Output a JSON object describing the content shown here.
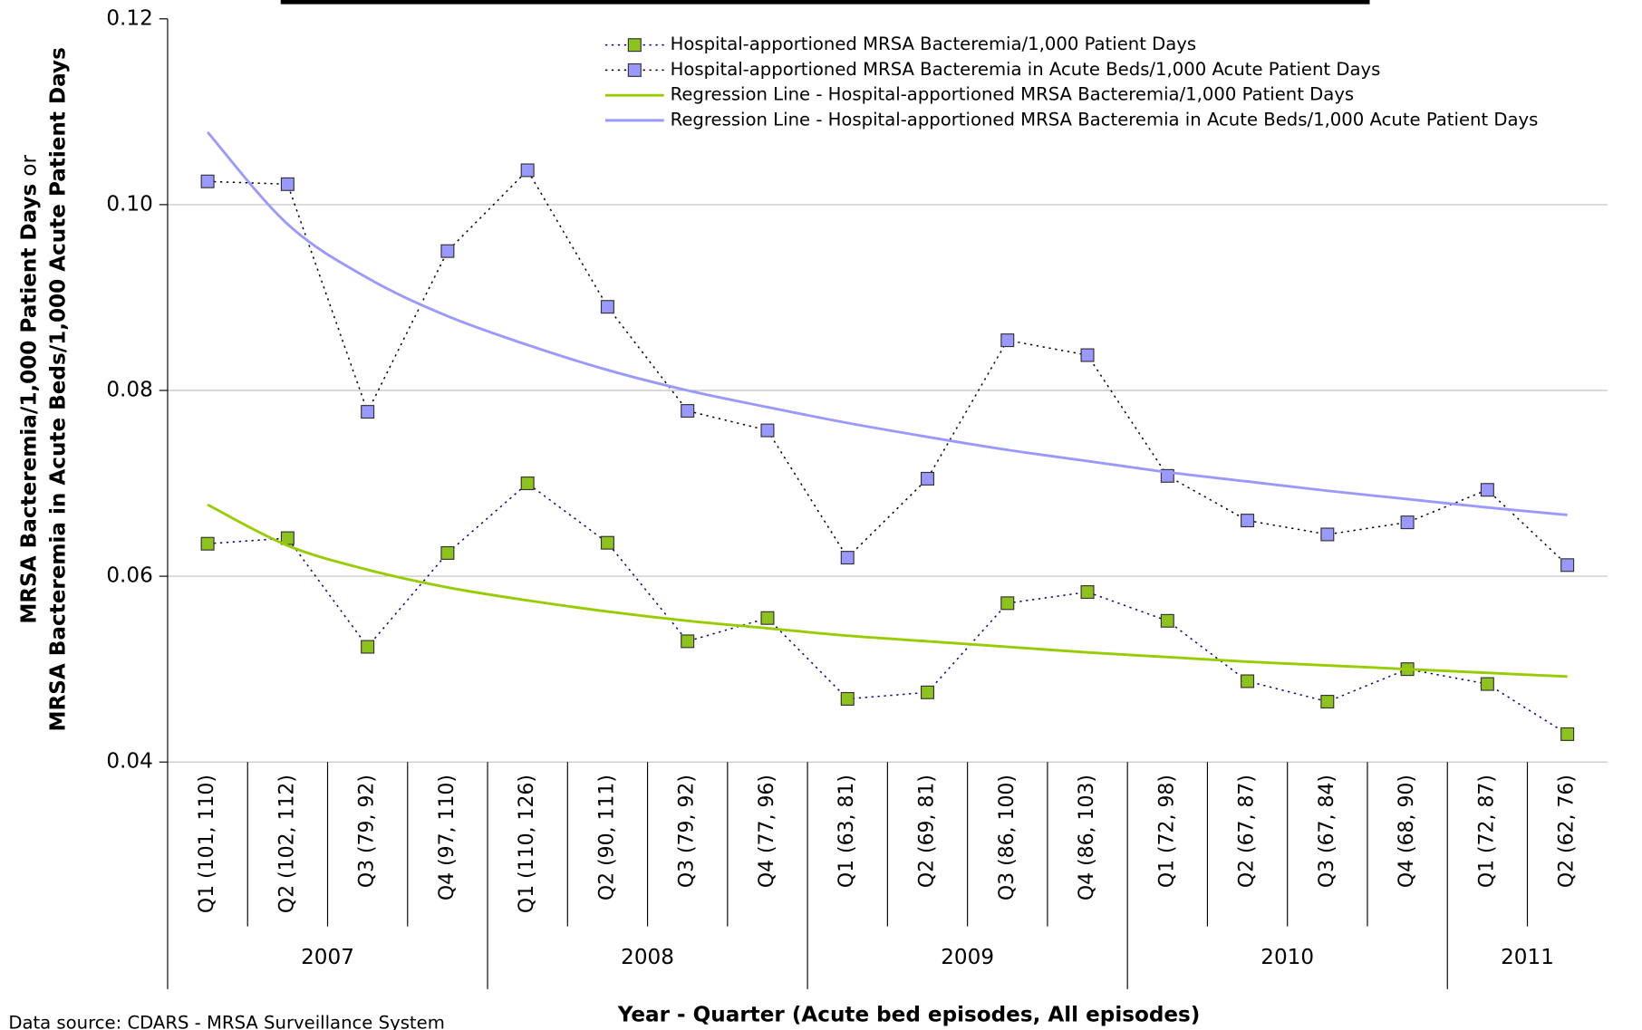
{
  "chart_data": {
    "type": "line",
    "y_label": [
      "MRSA Bacteremia/1,000 Patient Days",
      "or",
      "MRSA Bacteremia in Acute Beds/1,000 Acute Patient Days"
    ],
    "x_label": "Year - Quarter (Acute bed episodes, All episodes)",
    "source": "Data source: CDARS - MRSA Surveillance System",
    "categories": [
      "Q1 (101, 110)",
      "Q2 (102, 112)",
      "Q3 (79, 92)",
      "Q4 (97, 110)",
      "Q1 (110, 126)",
      "Q2 (90, 111)",
      "Q3 (79, 92)",
      "Q4 (77, 96)",
      "Q1 (63, 81)",
      "Q2 (69, 81)",
      "Q3 (86, 100)",
      "Q4 (86, 103)",
      "Q1 (72, 98)",
      "Q2 (67, 87)",
      "Q3 (67, 84)",
      "Q4 (68, 90)",
      "Q1 (72, 87)",
      "Q2 (62, 76)"
    ],
    "years": [
      "2007",
      "2008",
      "2009",
      "2010",
      "2011"
    ],
    "series": [
      {
        "name": "Hospital-apportioned MRSA Bacteremia/1,000 Patient Days",
        "color": "#8dc21f",
        "line_color": "#000080",
        "style": "markers",
        "values": [
          0.0635,
          0.0641,
          0.0524,
          0.0625,
          0.07,
          0.0636,
          0.053,
          0.0555,
          0.0468,
          0.0475,
          0.0571,
          0.0583,
          0.0552,
          0.0487,
          0.0465,
          0.05,
          0.0484,
          0.043
        ]
      },
      {
        "name": "Hospital-apportioned MRSA Bacteremia in Acute Beds/1,000 Acute Patient Days",
        "color": "#9999ff",
        "line_color": "#000000",
        "style": "markers",
        "values": [
          0.1025,
          0.1022,
          0.0777,
          0.095,
          0.1037,
          0.089,
          0.0778,
          0.0757,
          0.062,
          0.0705,
          0.0854,
          0.0838,
          0.0708,
          0.066,
          0.0645,
          0.0658,
          0.0693,
          0.0612
        ]
      },
      {
        "name": "Regression Line - Hospital-apportioned MRSA Bacteremia/1,000 Patient Days",
        "color": "#99cc00",
        "style": "smooth",
        "values": [
          0.0677,
          0.0633,
          0.0607,
          0.0588,
          0.0574,
          0.0562,
          0.0552,
          0.0544,
          0.0536,
          0.053,
          0.0524,
          0.0518,
          0.0513,
          0.0508,
          0.0504,
          0.05,
          0.0496,
          0.0492
        ]
      },
      {
        "name": "Regression Line - Hospital-apportioned MRSA Bacteremia in Acute Beds/1,000 Acute Patient Days",
        "color": "#9999ff",
        "style": "smooth",
        "values": [
          0.1078,
          0.0979,
          0.0921,
          0.088,
          0.0849,
          0.0822,
          0.08,
          0.0782,
          0.0765,
          0.075,
          0.0736,
          0.0724,
          0.0712,
          0.0702,
          0.0692,
          0.0683,
          0.0674,
          0.0666
        ]
      }
    ],
    "ylim": [
      0.04,
      0.12
    ],
    "yticks": [
      0.04,
      0.06,
      0.08,
      {
        "value": 0.1,
        "label": "0.10"
      },
      0.12
    ],
    "grid": true,
    "legend": "top-right"
  }
}
